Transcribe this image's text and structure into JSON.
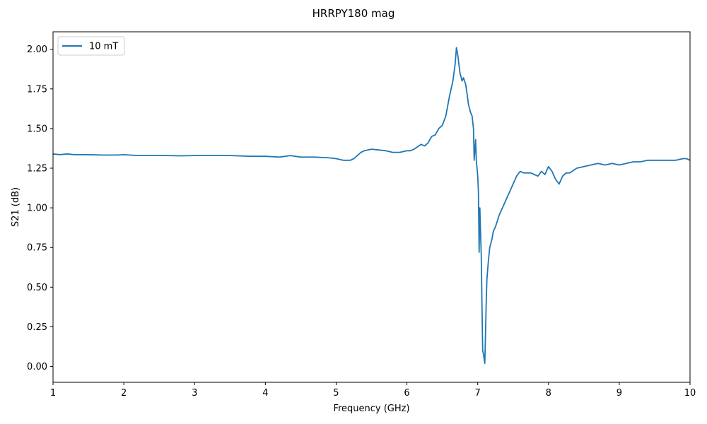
{
  "chart_data": {
    "type": "line",
    "title": "HRRPY180 mag",
    "xlabel": "Frequency (GHz)",
    "ylabel": "S21 (dB)",
    "xlim": [
      1,
      10
    ],
    "ylim": [
      -0.1,
      2.11
    ],
    "xticks": [
      1,
      2,
      3,
      4,
      5,
      6,
      7,
      8,
      9,
      10
    ],
    "xtick_labels": [
      "1",
      "2",
      "3",
      "4",
      "5",
      "6",
      "7",
      "8",
      "9",
      "10"
    ],
    "yticks": [
      0.0,
      0.25,
      0.5,
      0.75,
      1.0,
      1.25,
      1.5,
      1.75,
      2.0
    ],
    "ytick_labels": [
      "0.00",
      "0.25",
      "0.50",
      "0.75",
      "1.00",
      "1.25",
      "1.50",
      "1.75",
      "2.00"
    ],
    "grid": false,
    "legend_position": "top-left",
    "series": [
      {
        "name": "10 mT",
        "color": "#1f77b4",
        "x": [
          1.0,
          1.1,
          1.2,
          1.3,
          1.5,
          1.7,
          1.9,
          2.0,
          2.2,
          2.4,
          2.6,
          2.8,
          3.0,
          3.2,
          3.5,
          3.8,
          4.0,
          4.2,
          4.35,
          4.5,
          4.7,
          4.9,
          5.0,
          5.1,
          5.2,
          5.25,
          5.3,
          5.35,
          5.4,
          5.5,
          5.6,
          5.7,
          5.8,
          5.9,
          6.0,
          6.05,
          6.1,
          6.2,
          6.25,
          6.3,
          6.35,
          6.4,
          6.45,
          6.5,
          6.55,
          6.6,
          6.65,
          6.68,
          6.7,
          6.72,
          6.75,
          6.78,
          6.8,
          6.83,
          6.85,
          6.87,
          6.9,
          6.92,
          6.94,
          6.95,
          6.97,
          6.98,
          7.0,
          7.01,
          7.02,
          7.03,
          7.04,
          7.05,
          7.06,
          7.07,
          7.08,
          7.09,
          7.1,
          7.11,
          7.12,
          7.13,
          7.15,
          7.17,
          7.2,
          7.22,
          7.25,
          7.28,
          7.3,
          7.35,
          7.4,
          7.45,
          7.5,
          7.55,
          7.6,
          7.65,
          7.7,
          7.75,
          7.8,
          7.85,
          7.9,
          7.95,
          8.0,
          8.05,
          8.1,
          8.15,
          8.2,
          8.25,
          8.3,
          8.4,
          8.5,
          8.6,
          8.7,
          8.8,
          8.9,
          9.0,
          9.1,
          9.2,
          9.3,
          9.4,
          9.5,
          9.6,
          9.7,
          9.8,
          9.9,
          9.95,
          10.0
        ],
        "y": [
          1.34,
          1.335,
          1.34,
          1.335,
          1.335,
          1.333,
          1.333,
          1.335,
          1.33,
          1.33,
          1.33,
          1.328,
          1.33,
          1.33,
          1.33,
          1.325,
          1.325,
          1.32,
          1.33,
          1.32,
          1.32,
          1.315,
          1.31,
          1.3,
          1.3,
          1.31,
          1.33,
          1.35,
          1.36,
          1.37,
          1.365,
          1.36,
          1.35,
          1.35,
          1.36,
          1.36,
          1.37,
          1.4,
          1.39,
          1.41,
          1.45,
          1.46,
          1.5,
          1.52,
          1.58,
          1.7,
          1.8,
          1.9,
          2.01,
          1.96,
          1.85,
          1.8,
          1.82,
          1.78,
          1.72,
          1.65,
          1.6,
          1.58,
          1.5,
          1.3,
          1.43,
          1.3,
          1.2,
          1.1,
          0.72,
          1.0,
          0.85,
          0.7,
          0.4,
          0.1,
          0.08,
          0.05,
          0.02,
          0.2,
          0.4,
          0.55,
          0.66,
          0.75,
          0.8,
          0.85,
          0.88,
          0.92,
          0.95,
          1.0,
          1.05,
          1.1,
          1.15,
          1.2,
          1.23,
          1.22,
          1.22,
          1.22,
          1.21,
          1.2,
          1.23,
          1.21,
          1.26,
          1.23,
          1.18,
          1.15,
          1.2,
          1.22,
          1.22,
          1.25,
          1.26,
          1.27,
          1.28,
          1.27,
          1.28,
          1.27,
          1.28,
          1.29,
          1.29,
          1.3,
          1.3,
          1.3,
          1.3,
          1.3,
          1.31,
          1.31,
          1.3
        ]
      }
    ]
  }
}
